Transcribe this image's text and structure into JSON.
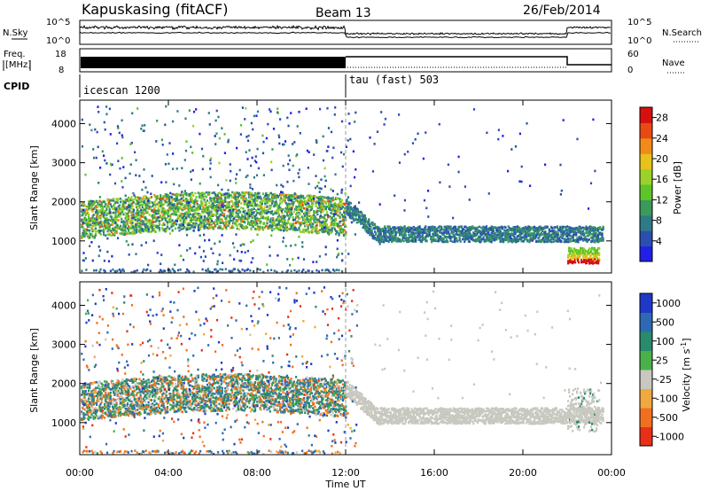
{
  "header": {
    "station": "Kapuskasing (fitACF)",
    "beam": "Beam 13",
    "date": "26/Feb/2014"
  },
  "noise_panel": {
    "left_label": "N.Sky",
    "right_label": "N.Search",
    "left_ticks": [
      "10^5",
      "10^0"
    ],
    "right_ticks": [
      "10^5",
      "10^0"
    ]
  },
  "freq_panel": {
    "left_label_1": "Freq.",
    "left_label_2": "[MHz]",
    "right_label": "Nave",
    "left_ticks": [
      "18",
      "8"
    ],
    "right_ticks": [
      "60",
      "0"
    ]
  },
  "cpid": {
    "label": "CPID",
    "entries": [
      {
        "name": "icescan 1200",
        "start_hour": 0
      },
      {
        "name": "tau (fast) 503",
        "start_hour": 12
      }
    ]
  },
  "time_axis": {
    "label": "Time UT",
    "ticks": [
      "00:00",
      "04:00",
      "08:00",
      "12:00",
      "16:00",
      "20:00",
      "00:00"
    ],
    "range_hours": [
      0,
      24
    ]
  },
  "chart_data": [
    {
      "type": "heatmap",
      "title": "",
      "ylabel": "Slant Range [km]",
      "xlabel": "Time UT",
      "ylim": [
        180,
        4600
      ],
      "yticks": [
        1000,
        2000,
        3000,
        4000
      ],
      "colorbar": {
        "label": "Power [dB]",
        "ticks": [
          "4",
          "8",
          "12",
          "16",
          "20",
          "24",
          "28"
        ],
        "range": [
          0,
          30
        ],
        "colors": [
          "#1f22e6",
          "#2a4fb0",
          "#2e7a88",
          "#3a9a5a",
          "#5ec42a",
          "#9ad22a",
          "#e6c21a",
          "#f08a18",
          "#e84a14",
          "#d61010"
        ]
      },
      "features": [
        {
          "desc": "main echo band",
          "t_start": 0.0,
          "t_end": 23.6,
          "range_low": 1000,
          "range_high": 2100
        },
        {
          "desc": "near-range strip",
          "t_start": 0.0,
          "t_end": 11.9,
          "range_low": 180,
          "range_high": 300
        },
        {
          "desc": "high-power patch",
          "t_start": 22.0,
          "t_end": 23.4,
          "range_low": 400,
          "range_high": 600,
          "power": 28
        }
      ]
    },
    {
      "type": "heatmap",
      "title": "",
      "ylabel": "Slant Range [km]",
      "xlabel": "Time UT",
      "ylim": [
        180,
        4600
      ],
      "yticks": [
        1000,
        2000,
        3000,
        4000
      ],
      "colorbar": {
        "label": "Velocity [m s^-1]",
        "ticks": [
          "1000",
          "500",
          "100",
          "25",
          "-25",
          "-100",
          "-500",
          "-1000"
        ],
        "range": [
          -1000,
          1000
        ],
        "colors": [
          "#2038c8",
          "#2e6ab4",
          "#2a8a6e",
          "#4ab04a",
          "#c8c8c0",
          "#f0a840",
          "#f07020",
          "#e83018"
        ]
      },
      "features": [
        {
          "desc": "mixed velocity band",
          "t_start": 0.0,
          "t_end": 11.9,
          "range_low": 900,
          "range_high": 2100
        },
        {
          "desc": "ground scatter (grey)",
          "t_start": 12.0,
          "t_end": 23.6,
          "range_low": 1000,
          "range_high": 1700
        }
      ]
    }
  ]
}
